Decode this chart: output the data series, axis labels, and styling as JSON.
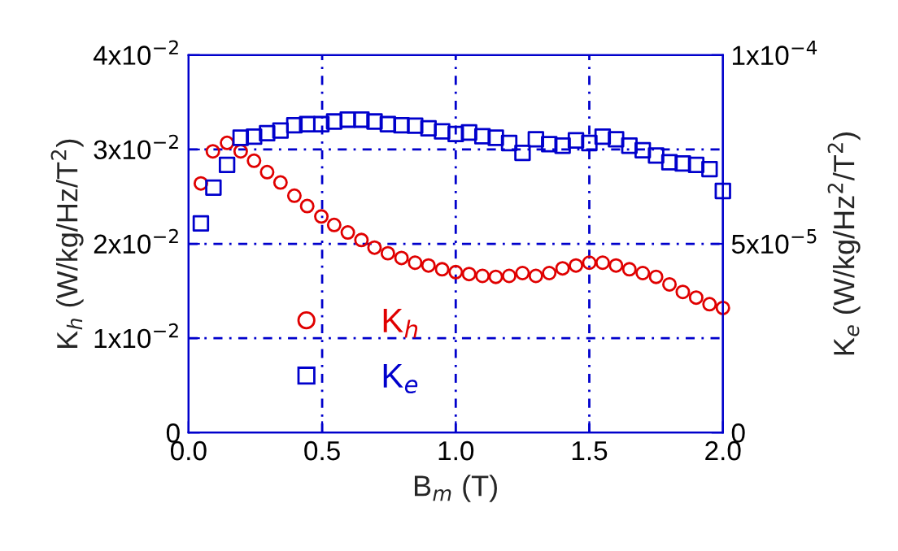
{
  "chart_data": {
    "type": "scatter",
    "xlabel": "B$_{m}$ (T)",
    "ylabel": "K$_{h}$ (W/kg/Hz/T$^{2}$)",
    "y2label": "K$_{e}$ (W/kg/Hz$^{2}$/T$^{2}$)",
    "xlim": [
      0,
      2
    ],
    "xticks": [
      {
        "value": 0,
        "label": "0.0"
      },
      {
        "value": 0.5,
        "label": "0.5"
      },
      {
        "value": 1,
        "label": "1.0"
      },
      {
        "value": 1.5,
        "label": "1.5"
      },
      {
        "value": 2,
        "label": "2.0"
      }
    ],
    "ylim": [
      0,
      0.04
    ],
    "yticks": [
      0,
      {
        "value": 0.01,
        "label": "1x10$^{−2}$"
      },
      {
        "value": 0.02,
        "label": "2x10$^{−2}$"
      },
      {
        "value": 0.03,
        "label": "3x10$^{−2}$"
      },
      {
        "value": 0.04,
        "label": "4x10$^{−2}$"
      }
    ],
    "y2lim": [
      0,
      0.0001
    ],
    "y2ticks": [
      0,
      {
        "value": 5e-05,
        "label": "5x10$^{−5}$"
      },
      {
        "value": 0.0001,
        "label": "1x10$^{−4}$"
      }
    ],
    "grid": true,
    "legend": "lower left",
    "series": [
      {
        "name": "K$_{h}$",
        "color": "#e00000",
        "marker": "circle",
        "x": [
          0.046,
          0.091,
          0.144,
          0.195,
          0.245,
          0.294,
          0.344,
          0.396,
          0.444,
          0.497,
          0.545,
          0.596,
          0.647,
          0.696,
          0.746,
          0.797,
          0.848,
          0.898,
          0.949,
          1.0,
          1.05,
          1.1,
          1.15,
          1.2,
          1.25,
          1.3,
          1.35,
          1.4,
          1.45,
          1.5,
          1.55,
          1.6,
          1.65,
          1.7,
          1.75,
          1.8,
          1.85,
          1.9,
          1.95,
          2.0
        ],
        "values": [
          0.0264,
          0.0298,
          0.0307,
          0.0298,
          0.0288,
          0.0276,
          0.0265,
          0.0251,
          0.024,
          0.0229,
          0.022,
          0.0212,
          0.0204,
          0.0196,
          0.019,
          0.0185,
          0.018,
          0.0177,
          0.0173,
          0.017,
          0.0168,
          0.0166,
          0.0165,
          0.0166,
          0.0169,
          0.0166,
          0.0169,
          0.0174,
          0.0177,
          0.018,
          0.018,
          0.0177,
          0.0173,
          0.0169,
          0.0165,
          0.0157,
          0.0149,
          0.0143,
          0.0136,
          0.0132
        ]
      },
      {
        "name": "K$_{e}$",
        "color": "#0000cc",
        "marker": "square",
        "axis": "y2",
        "x": [
          0.046,
          0.093,
          0.144,
          0.195,
          0.245,
          0.294,
          0.344,
          0.396,
          0.444,
          0.497,
          0.545,
          0.596,
          0.647,
          0.696,
          0.746,
          0.797,
          0.848,
          0.898,
          0.949,
          1.0,
          1.05,
          1.1,
          1.15,
          1.2,
          1.25,
          1.3,
          1.35,
          1.4,
          1.45,
          1.5,
          1.55,
          1.6,
          1.65,
          1.7,
          1.75,
          1.8,
          1.85,
          1.9,
          1.95,
          2.0
        ],
        "values": [
          5.54e-05,
          6.49e-05,
          7.09e-05,
          7.81e-05,
          7.84e-05,
          7.93e-05,
          8e-05,
          8.14e-05,
          8.17e-05,
          8.17e-05,
          8.24e-05,
          8.29e-05,
          8.29e-05,
          8.24e-05,
          8.17e-05,
          8.14e-05,
          8.13e-05,
          8.06e-05,
          7.98e-05,
          7.91e-05,
          7.95e-05,
          7.85e-05,
          7.81e-05,
          7.67e-05,
          7.41e-05,
          7.77e-05,
          7.64e-05,
          7.6e-05,
          7.74e-05,
          7.67e-05,
          7.84e-05,
          7.77e-05,
          7.6e-05,
          7.48e-05,
          7.34e-05,
          7.16e-05,
          7.13e-05,
          7.09e-05,
          6.98e-05,
          6.4e-05
        ]
      }
    ]
  }
}
